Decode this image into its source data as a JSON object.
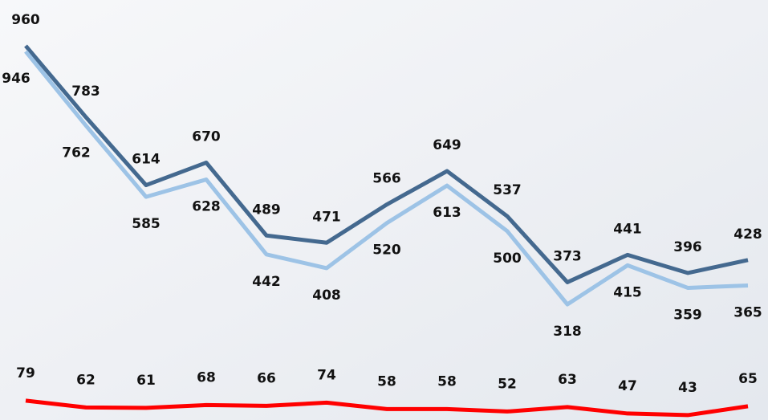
{
  "chart_data": {
    "type": "line",
    "categories": [
      null,
      null,
      null,
      null,
      null,
      null,
      null,
      null,
      null,
      null,
      null,
      null,
      null
    ],
    "series": [
      {
        "color": "#44698f",
        "values": [
          960,
          783,
          614,
          670,
          489,
          471,
          566,
          649,
          537,
          373,
          441,
          396,
          428
        ]
      },
      {
        "color": "#9dc3e6",
        "values": [
          946,
          762,
          585,
          628,
          442,
          408,
          520,
          613,
          500,
          318,
          415,
          359,
          365
        ]
      },
      {
        "color": "#ff0000",
        "values": [
          79,
          62,
          61,
          68,
          66,
          74,
          58,
          58,
          52,
          63,
          47,
          43,
          65
        ]
      }
    ],
    "ylim": [
      0,
      1000
    ]
  }
}
